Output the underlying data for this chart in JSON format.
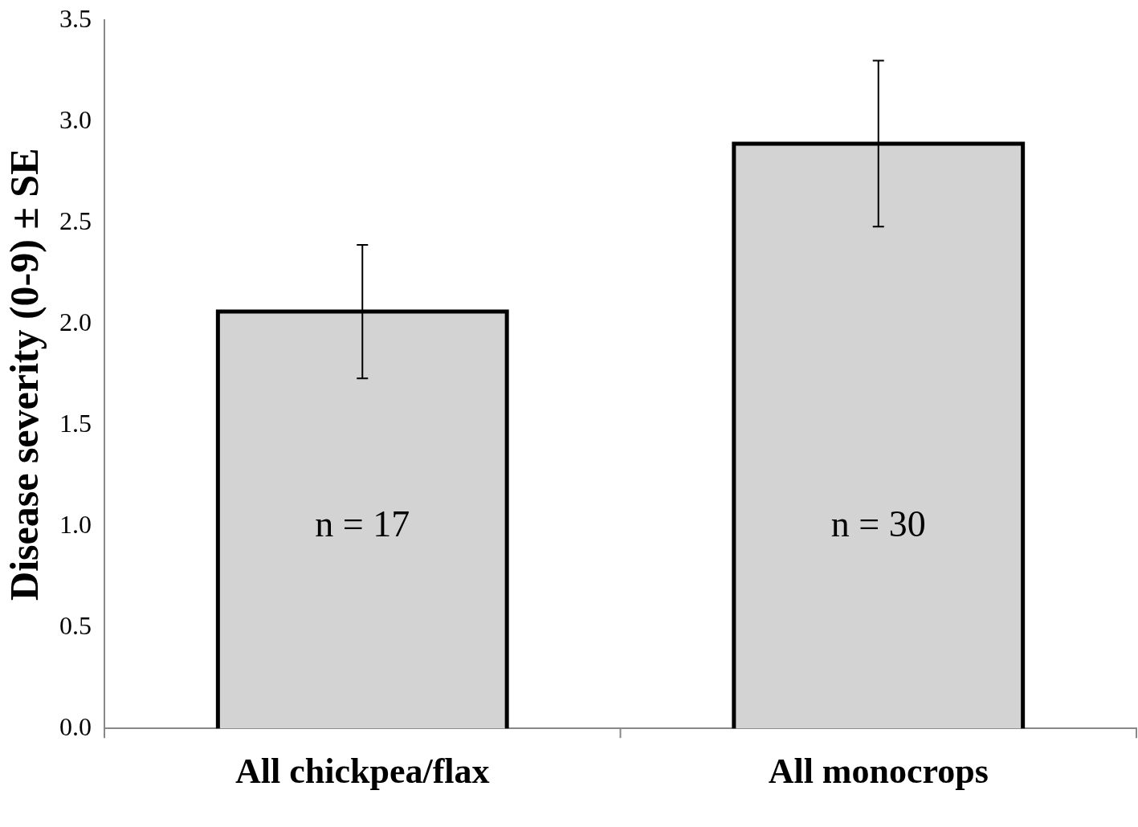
{
  "chart_data": {
    "type": "bar",
    "ylabel": "Disease severity (0-9) ± SE",
    "categories": [
      "All chickpea/flax",
      "All monocrops"
    ],
    "values": [
      2.06,
      2.89
    ],
    "color": "#d3d3d3",
    "errors": [
      0.33,
      0.41
    ],
    "ylim": [
      0,
      3.5
    ],
    "yticks": [
      {
        "value": 0,
        "label": "0.0"
      },
      {
        "value": 0.5,
        "label": "0.5"
      },
      {
        "value": 1,
        "label": "1.0"
      },
      {
        "value": 1.5,
        "label": "1.5"
      },
      {
        "value": 2,
        "label": "2.0"
      },
      {
        "value": 2.5,
        "label": "2.5"
      },
      {
        "value": 3,
        "label": "3.0"
      },
      {
        "value": 3.5,
        "label": "3.5"
      }
    ],
    "grid": false,
    "legend": false,
    "annotations": [
      "n = 17",
      "n = 30"
    ]
  }
}
